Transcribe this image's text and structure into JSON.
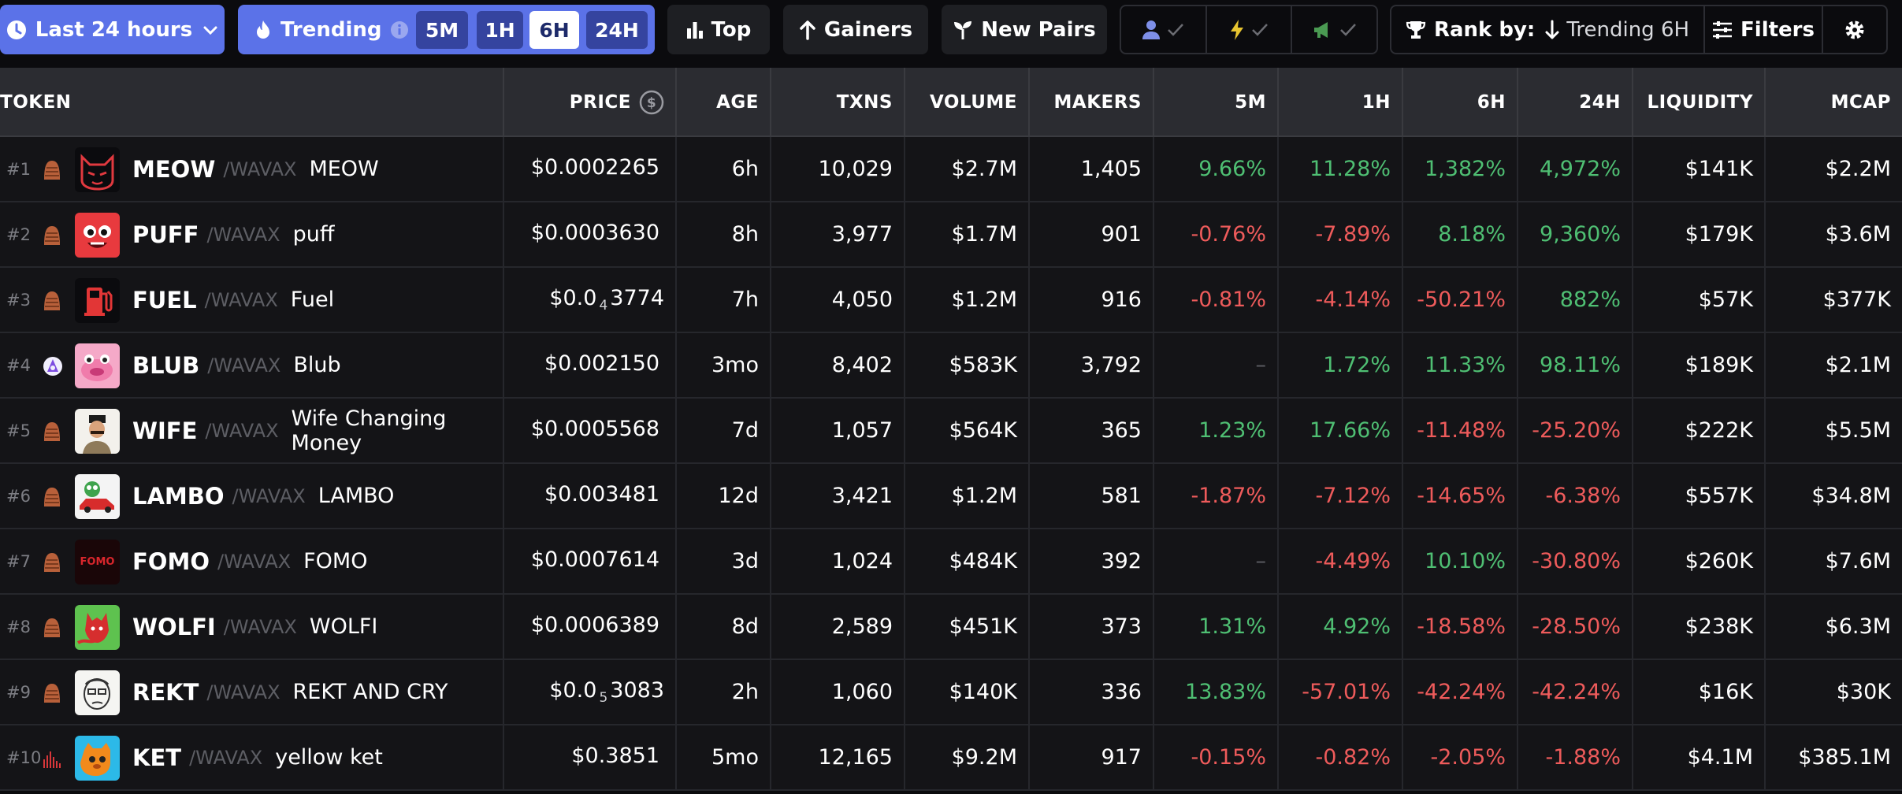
{
  "toolbar": {
    "timeframe_label": "Last 24 hours",
    "trending_label": "Trending",
    "trending_tabs": [
      "5M",
      "1H",
      "6H",
      "24H"
    ],
    "trending_active": "6H",
    "top_label": "Top",
    "gainers_label": "Gainers",
    "new_pairs_label": "New Pairs",
    "rank_by_label": "Rank by:",
    "rank_by_value": "Trending 6H",
    "filters_label": "Filters"
  },
  "colors": {
    "accent_blue": "#5b72e8",
    "positive": "#4fbf73",
    "negative": "#ee5b5b",
    "row_bg": "#141417",
    "header_bg": "#2b2c31"
  },
  "table": {
    "headers": {
      "token": "TOKEN",
      "price": "PRICE",
      "age": "AGE",
      "txns": "TXNS",
      "volume": "VOLUME",
      "makers": "MAKERS",
      "m5": "5M",
      "h1": "1H",
      "h6": "6H",
      "h24": "24H",
      "liquidity": "LIQUIDITY",
      "mcap": "MCAP"
    },
    "rows": [
      {
        "rank": "#1",
        "symbol": "MEOW",
        "quote": "/WAVAX",
        "name": "MEOW",
        "price_a": "$0.0002265",
        "price_sub": "",
        "price_b": "",
        "age": "6h",
        "txns": "10,029",
        "volume": "$2.7M",
        "makers": "1,405",
        "m5": "9.66%",
        "h1": "11.28%",
        "h6": "1,382%",
        "h24": "4,972%",
        "liquidity": "$141K",
        "mcap": "$2.2M",
        "dex_icon": "pharaoh-icon",
        "logo_icon": "cat-face-icon"
      },
      {
        "rank": "#2",
        "symbol": "PUFF",
        "quote": "/WAVAX",
        "name": "puff",
        "price_a": "$0.0003630",
        "price_sub": "",
        "price_b": "",
        "age": "8h",
        "txns": "3,977",
        "volume": "$1.7M",
        "makers": "901",
        "m5": "-0.76%",
        "h1": "-7.89%",
        "h6": "8.18%",
        "h24": "9,360%",
        "liquidity": "$179K",
        "mcap": "$3.6M",
        "dex_icon": "pharaoh-icon",
        "logo_icon": "red-creature-icon"
      },
      {
        "rank": "#3",
        "symbol": "FUEL",
        "quote": "/WAVAX",
        "name": "Fuel",
        "price_a": "$0.0",
        "price_sub": "4",
        "price_b": "3774",
        "age": "7h",
        "txns": "4,050",
        "volume": "$1.2M",
        "makers": "916",
        "m5": "-0.81%",
        "h1": "-4.14%",
        "h6": "-50.21%",
        "h24": "882%",
        "liquidity": "$57K",
        "mcap": "$377K",
        "dex_icon": "pharaoh-icon",
        "logo_icon": "fuel-pump-icon"
      },
      {
        "rank": "#4",
        "symbol": "BLUB",
        "quote": "/WAVAX",
        "name": "Blub",
        "price_a": "$0.002150",
        "price_sub": "",
        "price_b": "",
        "age": "3mo",
        "txns": "8,402",
        "volume": "$583K",
        "makers": "3,792",
        "m5": "-",
        "h1": "1.72%",
        "h6": "11.33%",
        "h24": "98.11%",
        "liquidity": "$189K",
        "mcap": "$2.1M",
        "dex_icon": "lfj-icon",
        "logo_icon": "pink-blob-icon"
      },
      {
        "rank": "#5",
        "symbol": "WIFE",
        "quote": "/WAVAX",
        "name": "Wife Changing Money",
        "price_a": "$0.0005568",
        "price_sub": "",
        "price_b": "",
        "age": "7d",
        "txns": "1,057",
        "volume": "$564K",
        "makers": "365",
        "m5": "1.23%",
        "h1": "17.66%",
        "h6": "-11.48%",
        "h24": "-25.20%",
        "liquidity": "$222K",
        "mcap": "$5.5M",
        "dex_icon": "pharaoh-icon",
        "logo_icon": "portrait-icon"
      },
      {
        "rank": "#6",
        "symbol": "LAMBO",
        "quote": "/WAVAX",
        "name": "LAMBO",
        "price_a": "$0.003481",
        "price_sub": "",
        "price_b": "",
        "age": "12d",
        "txns": "3,421",
        "volume": "$1.2M",
        "makers": "581",
        "m5": "-1.87%",
        "h1": "-7.12%",
        "h6": "-14.65%",
        "h24": "-6.38%",
        "liquidity": "$557K",
        "mcap": "$34.8M",
        "dex_icon": "pharaoh-icon",
        "logo_icon": "frog-car-icon"
      },
      {
        "rank": "#7",
        "symbol": "FOMO",
        "quote": "/WAVAX",
        "name": "FOMO",
        "price_a": "$0.0007614",
        "price_sub": "",
        "price_b": "",
        "age": "3d",
        "txns": "1,024",
        "volume": "$484K",
        "makers": "392",
        "m5": "-",
        "h1": "-4.49%",
        "h6": "10.10%",
        "h24": "-30.80%",
        "liquidity": "$260K",
        "mcap": "$7.6M",
        "dex_icon": "pharaoh-icon",
        "logo_icon": "fomo-text-icon",
        "logo_text": "FOMO"
      },
      {
        "rank": "#8",
        "symbol": "WOLFI",
        "quote": "/WAVAX",
        "name": "WOLFI",
        "price_a": "$0.0006389",
        "price_sub": "",
        "price_b": "",
        "age": "8d",
        "txns": "2,589",
        "volume": "$451K",
        "makers": "373",
        "m5": "1.31%",
        "h1": "4.92%",
        "h6": "-18.58%",
        "h24": "-28.50%",
        "liquidity": "$238K",
        "mcap": "$6.3M",
        "dex_icon": "pharaoh-icon",
        "logo_icon": "wolf-icon"
      },
      {
        "rank": "#9",
        "symbol": "REKT",
        "quote": "/WAVAX",
        "name": "REKT AND CRY",
        "price_a": "$0.0",
        "price_sub": "5",
        "price_b": "3083",
        "age": "2h",
        "txns": "1,060",
        "volume": "$140K",
        "makers": "336",
        "m5": "13.83%",
        "h1": "-57.01%",
        "h6": "-42.24%",
        "h24": "-42.24%",
        "liquidity": "$16K",
        "mcap": "$30K",
        "dex_icon": "pharaoh-icon",
        "logo_icon": "sketch-face-icon"
      },
      {
        "rank": "#10",
        "symbol": "KET",
        "quote": "/WAVAX",
        "name": "yellow ket",
        "price_a": "$0.3851",
        "price_sub": "",
        "price_b": "",
        "age": "5mo",
        "txns": "12,165",
        "volume": "$9.2M",
        "makers": "917",
        "m5": "-0.15%",
        "h1": "-0.82%",
        "h6": "-2.05%",
        "h24": "-1.88%",
        "liquidity": "$4.1M",
        "mcap": "$385.1M",
        "dex_icon": "bar-chart-dex-icon",
        "logo_icon": "orange-cat-icon"
      }
    ]
  }
}
